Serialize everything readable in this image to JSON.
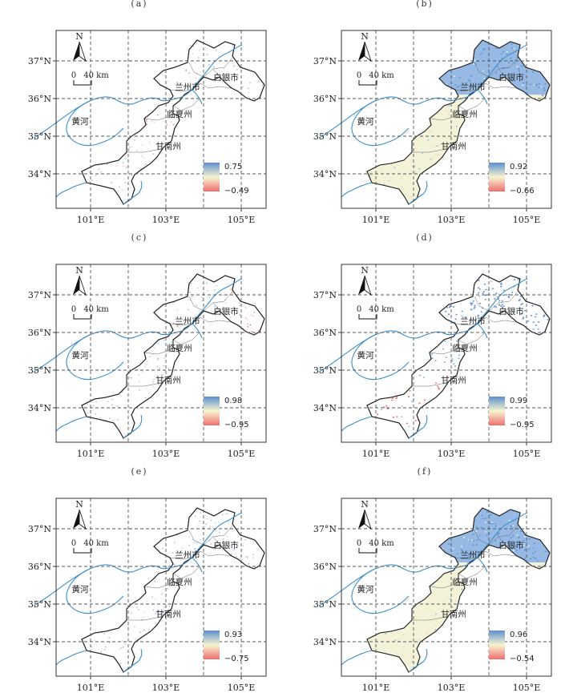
{
  "panels": [
    {
      "id": "a",
      "label": "(a)",
      "vmax": "0.75",
      "vmin": "−0.49",
      "pattern": "sparse-red-north"
    },
    {
      "id": "b",
      "label": "(b)",
      "vmax": "0.92",
      "vmin": "−0.66",
      "pattern": "blue-north-cream-south"
    },
    {
      "id": "c",
      "label": "(c)",
      "vmax": "0.98",
      "vmin": "−0.95",
      "pattern": "sparse-mixed"
    },
    {
      "id": "d",
      "label": "(d)",
      "vmax": "0.99",
      "vmin": "−0.95",
      "pattern": "blue-north-red-south"
    },
    {
      "id": "e",
      "label": "(e)",
      "vmax": "0.93",
      "vmin": "−0.75",
      "pattern": "sparse-blue-center"
    },
    {
      "id": "f",
      "label": "(f)",
      "vmax": "0.96",
      "vmin": "−0.54",
      "pattern": "blue-north-cream-south"
    }
  ],
  "axes": {
    "lat_labels": [
      "37°N",
      "36°N",
      "35°N",
      "34°N"
    ],
    "lon_labels": [
      "101°E",
      "103°E",
      "105°E"
    ]
  },
  "places": {
    "baiyin": "白银市",
    "lanzhou": "兰州市",
    "linxia": "临夏州",
    "gannan": "甘南州",
    "huanghe": "黄河"
  },
  "north_arrow": "N",
  "scale_bar": {
    "zero": "0",
    "value": "40",
    "unit": "km"
  },
  "colors": {
    "high": "#5b8fd1",
    "mid": "#f7f4d0",
    "low": "#ee6f6f",
    "river": "#3a8ec9"
  }
}
